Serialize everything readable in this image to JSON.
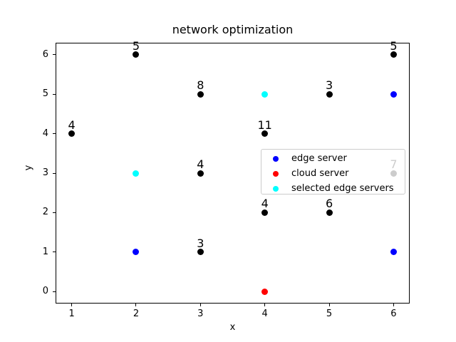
{
  "chart_data": {
    "type": "scatter",
    "title": "network optimization",
    "xlabel": "x",
    "ylabel": "y",
    "xlim": [
      0.75,
      6.25
    ],
    "ylim": [
      -0.3,
      6.3
    ],
    "xticks": [
      "1",
      "2",
      "3",
      "4",
      "5",
      "6"
    ],
    "yticks": [
      "0",
      "1",
      "2",
      "3",
      "4",
      "5",
      "6"
    ],
    "grid": false,
    "legend": {
      "position": "center right",
      "frame_alpha": 0.8,
      "items": [
        {
          "label": "edge server",
          "color": "#0000ff"
        },
        {
          "label": "cloud server",
          "color": "#ff0000"
        },
        {
          "label": "selected edge servers",
          "color": "#00ffff"
        }
      ]
    },
    "series": [
      {
        "name": "network nodes",
        "color": "#000000",
        "points": [
          {
            "x": 1,
            "y": 4,
            "label": "4"
          },
          {
            "x": 2,
            "y": 6,
            "label": "5"
          },
          {
            "x": 3,
            "y": 5,
            "label": "8"
          },
          {
            "x": 3,
            "y": 3,
            "label": "4"
          },
          {
            "x": 3,
            "y": 1,
            "label": "3"
          },
          {
            "x": 4,
            "y": 4,
            "label": "11"
          },
          {
            "x": 4,
            "y": 2,
            "label": "4"
          },
          {
            "x": 5,
            "y": 5,
            "label": "3"
          },
          {
            "x": 5,
            "y": 2,
            "label": "6"
          },
          {
            "x": 6,
            "y": 6,
            "label": "5"
          },
          {
            "x": 6,
            "y": 3,
            "label": "7"
          }
        ]
      },
      {
        "name": "edge server",
        "color": "#0000ff",
        "points": [
          {
            "x": 2,
            "y": 1
          },
          {
            "x": 6,
            "y": 5
          },
          {
            "x": 6,
            "y": 1
          }
        ]
      },
      {
        "name": "cloud server",
        "color": "#ff0000",
        "points": [
          {
            "x": 4,
            "y": 0
          }
        ]
      },
      {
        "name": "selected edge servers",
        "color": "#00ffff",
        "points": [
          {
            "x": 2,
            "y": 3
          },
          {
            "x": 4,
            "y": 5
          }
        ]
      }
    ]
  }
}
